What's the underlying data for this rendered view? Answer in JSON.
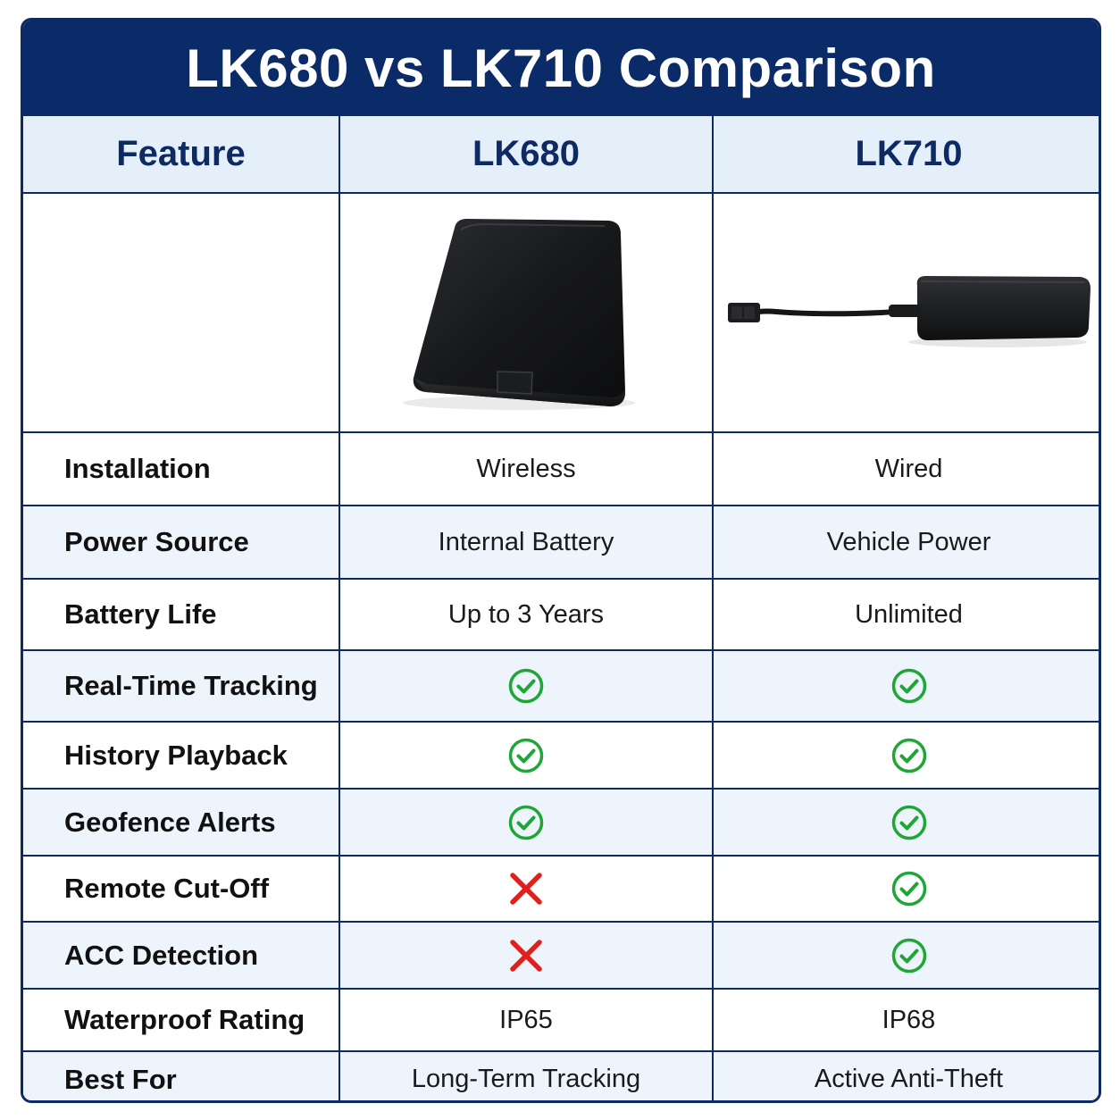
{
  "title": "LK680 vs LK710 Comparison",
  "header": {
    "feature": "Feature",
    "product_a": "LK680",
    "product_b": "LK710"
  },
  "images": {
    "product_a": "lk680-device-image",
    "product_b": "lk710-device-image"
  },
  "rows": [
    {
      "label": "Installation",
      "a": "Wireless",
      "b": "Wired"
    },
    {
      "label": "Power Source",
      "a": "Internal Battery",
      "b": "Vehicle Power"
    },
    {
      "label": "Battery Life",
      "a": "Up to 3 Years",
      "b": "Unlimited"
    },
    {
      "label": "Real-Time Tracking",
      "a_icon": "check-circle-icon",
      "b_icon": "check-circle-icon"
    },
    {
      "label": "History Playback",
      "a_icon": "check-circle-icon",
      "b_icon": "check-circle-icon"
    },
    {
      "label": "Geofence Alerts",
      "a_icon": "check-circle-icon",
      "b_icon": "check-circle-icon"
    },
    {
      "label": "Remote Cut-Off",
      "a_icon": "cross-icon",
      "b_icon": "check-circle-icon"
    },
    {
      "label": "ACC Detection",
      "a_icon": "cross-icon",
      "b_icon": "check-circle-icon"
    },
    {
      "label": "Waterproof Rating",
      "a": "IP65",
      "b": "IP68"
    },
    {
      "label": "Best For",
      "a": "Long-Term Tracking",
      "b": "Active Anti-Theft"
    }
  ],
  "colors": {
    "brand_navy": "#0b2a68",
    "header_tint": "#e4effa",
    "check_green": "#1fa637",
    "cross_red": "#e0201b"
  }
}
